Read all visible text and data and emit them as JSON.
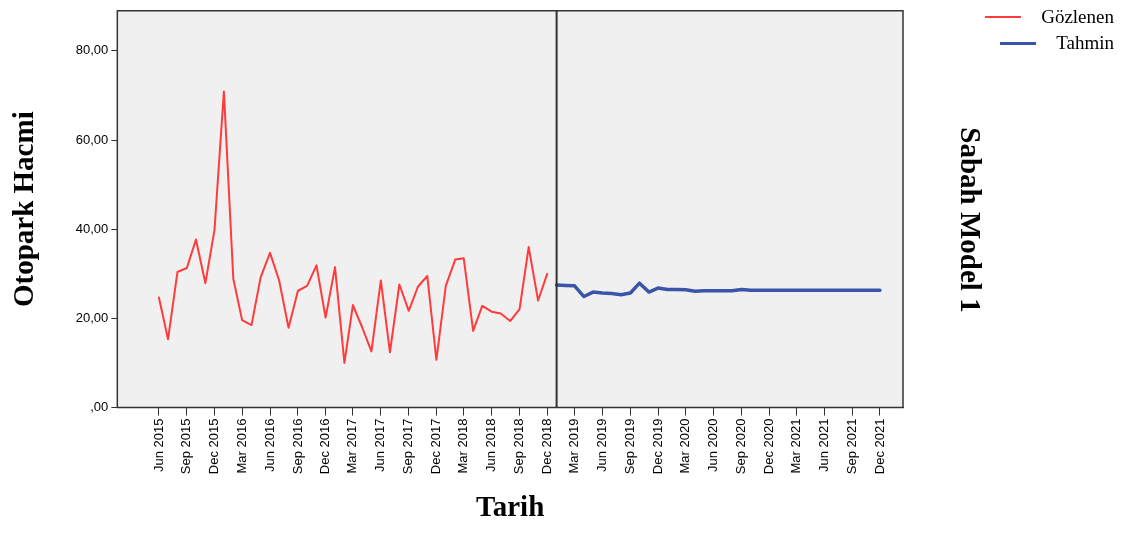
{
  "chart_data": {
    "type": "line",
    "xlabel": "Tarih",
    "ylabel": "Otopark Hacmi",
    "annotations": [
      "Sabah Model 1"
    ],
    "xlim": [
      "2015-01-15",
      "2022-02-15"
    ],
    "xticks": [
      {
        "value": "2015-06",
        "label": "Jun 2015"
      },
      {
        "value": "2015-09",
        "label": "Sep 2015"
      },
      {
        "value": "2015-12",
        "label": "Dec 2015"
      },
      {
        "value": "2016-03",
        "label": "Mar 2016"
      },
      {
        "value": "2016-06",
        "label": "Jun 2016"
      },
      {
        "value": "2016-09",
        "label": "Sep 2016"
      },
      {
        "value": "2016-12",
        "label": "Dec 2016"
      },
      {
        "value": "2017-03",
        "label": "Mar 2017"
      },
      {
        "value": "2017-06",
        "label": "Jun 2017"
      },
      {
        "value": "2017-09",
        "label": "Sep 2017"
      },
      {
        "value": "2017-12",
        "label": "Dec 2017"
      },
      {
        "value": "2018-03",
        "label": "Mar 2018"
      },
      {
        "value": "2018-06",
        "label": "Jun 2018"
      },
      {
        "value": "2018-09",
        "label": "Sep 2018"
      },
      {
        "value": "2018-12",
        "label": "Dec 2018"
      },
      {
        "value": "2019-03",
        "label": "Mar 2019"
      },
      {
        "value": "2019-06",
        "label": "Jun 2019"
      },
      {
        "value": "2019-09",
        "label": "Sep 2019"
      },
      {
        "value": "2019-12",
        "label": "Dec 2019"
      },
      {
        "value": "2020-03",
        "label": "Mar 2020"
      },
      {
        "value": "2020-06",
        "label": "Jun 2020"
      },
      {
        "value": "2020-09",
        "label": "Sep 2020"
      },
      {
        "value": "2020-12",
        "label": "Dec 2020"
      },
      {
        "value": "2021-03",
        "label": "Mar 2021"
      },
      {
        "value": "2021-06",
        "label": "Jun 2021"
      },
      {
        "value": "2021-09",
        "label": "Sep 2021"
      },
      {
        "value": "2021-12",
        "label": "Dec 2021"
      }
    ],
    "ylim": [
      0,
      89
    ],
    "yticks": [
      {
        "value": 0,
        "label": ",00"
      },
      {
        "value": 20,
        "label": "20,00"
      },
      {
        "value": 40,
        "label": "40,00"
      },
      {
        "value": 60,
        "label": "60,00"
      },
      {
        "value": 80,
        "label": "80,00"
      }
    ],
    "grid": false,
    "legend": "top right",
    "ref_lines": [
      {
        "axis": "x",
        "value": "2019-01",
        "color": "#333333"
      }
    ],
    "series": [
      {
        "name": "Gözlenen",
        "color": "#ff3b3b",
        "x": [
          "2015-06",
          "2015-07",
          "2015-08",
          "2015-09",
          "2015-10",
          "2015-11",
          "2015-12",
          "2016-01",
          "2016-02",
          "2016-03",
          "2016-04",
          "2016-05",
          "2016-06",
          "2016-07",
          "2016-08",
          "2016-09",
          "2016-10",
          "2016-11",
          "2016-12",
          "2017-01",
          "2017-02",
          "2017-03",
          "2017-04",
          "2017-05",
          "2017-06",
          "2017-07",
          "2017-08",
          "2017-09",
          "2017-10",
          "2017-11",
          "2017-12",
          "2018-01",
          "2018-02",
          "2018-03",
          "2018-04",
          "2018-05",
          "2018-06",
          "2018-07",
          "2018-08",
          "2018-09",
          "2018-10",
          "2018-11",
          "2018-12"
        ],
        "values": [
          24.7,
          15.3,
          30.4,
          31.3,
          37.7,
          27.9,
          39.8,
          70.9,
          28.9,
          19.6,
          18.5,
          29.2,
          34.7,
          28.5,
          17.9,
          26.2,
          27.3,
          31.9,
          20.2,
          31.5,
          10.0,
          23.0,
          17.9,
          12.6,
          28.5,
          12.4,
          27.6,
          21.7,
          27.1,
          29.5,
          10.7,
          27.3,
          33.2,
          33.5,
          17.2,
          22.8,
          21.5,
          21.1,
          19.4,
          22.1,
          36.0,
          24.0,
          30.0
        ]
      },
      {
        "name": "Tahmin",
        "color": "#3a55a8",
        "x": [
          "2019-01",
          "2019-02",
          "2019-03",
          "2019-04",
          "2019-05",
          "2019-06",
          "2019-07",
          "2019-08",
          "2019-09",
          "2019-10",
          "2019-11",
          "2019-12",
          "2020-01",
          "2020-02",
          "2020-03",
          "2020-04",
          "2020-05",
          "2020-06",
          "2020-07",
          "2020-08",
          "2020-09",
          "2020-10",
          "2020-11",
          "2020-12",
          "2021-01",
          "2021-02",
          "2021-03",
          "2021-04",
          "2021-05",
          "2021-06",
          "2021-07",
          "2021-08",
          "2021-09",
          "2021-10",
          "2021-11",
          "2021-12"
        ],
        "values": [
          27.5,
          27.4,
          27.3,
          24.9,
          25.9,
          25.7,
          25.6,
          25.3,
          25.7,
          27.9,
          25.9,
          26.8,
          26.5,
          26.5,
          26.4,
          26.1,
          26.2,
          26.2,
          26.2,
          26.2,
          26.5,
          26.3,
          26.3,
          26.3,
          26.3,
          26.3,
          26.3,
          26.3,
          26.3,
          26.3,
          26.3,
          26.3,
          26.3,
          26.3,
          26.3,
          26.3
        ]
      }
    ]
  }
}
